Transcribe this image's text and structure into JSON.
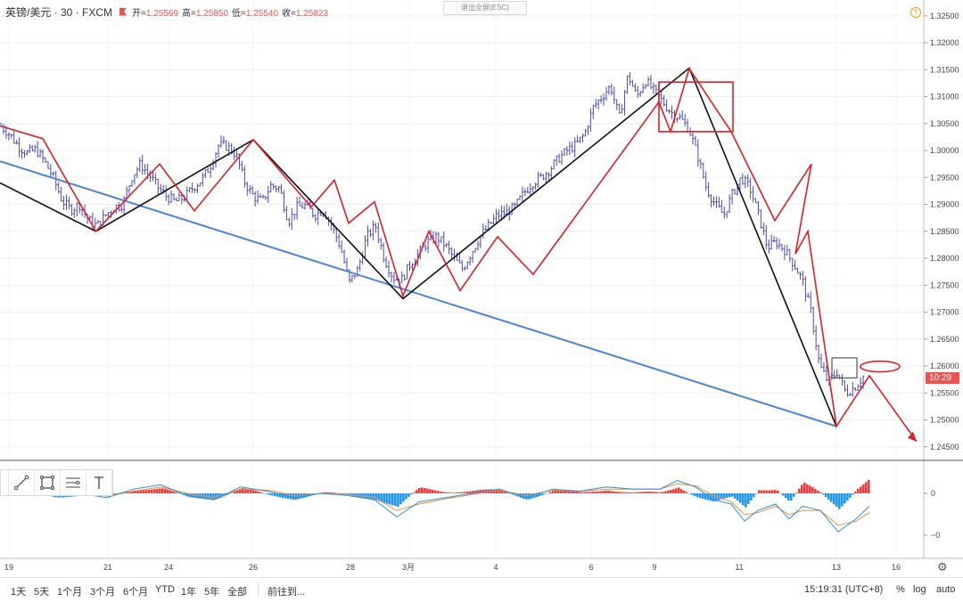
{
  "header": {
    "symbol": "英镑/美元 · 30 · FXCM",
    "open_label": "开",
    "open": "1.25569",
    "high_label": "高",
    "high": "1.25850",
    "low_label": "低",
    "low": "1.25540",
    "close_label": "收",
    "close": "1.25823"
  },
  "exit_fullscreen": "退出全屏(ESC)",
  "warning_icon": "!",
  "price_tag": "10:29",
  "colors": {
    "up": "#26a69a",
    "down": "#ef5350",
    "candle": "#4a4ab8",
    "zigzag_red": "#e01e26",
    "zigzag_black": "#111111",
    "trendline": "#4a86d6",
    "macd_line": "#2f8ee0",
    "signal_line": "#e8923a",
    "hist_pos": "#ef3b3b",
    "hist_neg": "#2196f3"
  },
  "chart_data": [
    {
      "type": "candlestick",
      "axis_position": "right",
      "ylim": [
        1.243,
        1.328
      ],
      "y_ticks": [
        "1.24500",
        "1.25000",
        "1.25500",
        "1.26000",
        "1.26500",
        "1.27000",
        "1.27500",
        "1.28000",
        "1.28500",
        "1.29000",
        "1.29500",
        "1.30000",
        "1.30500",
        "1.31000",
        "1.31500",
        "1.32000",
        "1.32500"
      ],
      "x_ticks": [
        "19",
        "21",
        "24",
        "26",
        "28",
        "3月",
        "4",
        "6",
        "9",
        "11",
        "13",
        "16"
      ],
      "price_path": [
        [
          0,
          1.3045
        ],
        [
          1,
          1.303
        ],
        [
          2,
          1.3008
        ],
        [
          3,
          1.2995
        ],
        [
          4,
          1.3002
        ],
        [
          5,
          1.298
        ],
        [
          6,
          1.295
        ],
        [
          7,
          1.2908
        ],
        [
          8,
          1.289
        ],
        [
          9,
          1.29
        ],
        [
          10,
          1.2872
        ],
        [
          11,
          1.286
        ],
        [
          12,
          1.288
        ],
        [
          13,
          1.2895
        ],
        [
          14,
          1.29
        ],
        [
          15,
          1.295
        ],
        [
          16,
          1.2975
        ],
        [
          17,
          1.2955
        ],
        [
          18,
          1.2932
        ],
        [
          19,
          1.2915
        ],
        [
          20,
          1.2905
        ],
        [
          21,
          1.2912
        ],
        [
          22,
          1.293
        ],
        [
          23,
          1.2945
        ],
        [
          24,
          1.297
        ],
        [
          25,
          1.301
        ],
        [
          26,
          1.3008
        ],
        [
          27,
          1.2992
        ],
        [
          28,
          1.294
        ],
        [
          29,
          1.2915
        ],
        [
          30,
          1.2905
        ],
        [
          31,
          1.2935
        ],
        [
          32,
          1.293
        ],
        [
          33,
          1.2868
        ],
        [
          34,
          1.2895
        ],
        [
          35,
          1.2898
        ],
        [
          36,
          1.288
        ],
        [
          37,
          1.289
        ],
        [
          38,
          1.286
        ],
        [
          39,
          1.282
        ],
        [
          40,
          1.2755
        ],
        [
          41,
          1.278
        ],
        [
          42,
          1.284
        ],
        [
          43,
          1.286
        ],
        [
          44,
          1.28
        ],
        [
          45,
          1.2765
        ],
        [
          46,
          1.276
        ],
        [
          47,
          1.279
        ],
        [
          48,
          1.281
        ],
        [
          49,
          1.283
        ],
        [
          50,
          1.284
        ],
        [
          51,
          1.2825
        ],
        [
          52,
          1.28
        ],
        [
          53,
          1.278
        ],
        [
          54,
          1.281
        ],
        [
          55,
          1.284
        ],
        [
          56,
          1.286
        ],
        [
          57,
          1.288
        ],
        [
          58,
          1.2885
        ],
        [
          59,
          1.2895
        ],
        [
          60,
          1.292
        ],
        [
          61,
          1.294
        ],
        [
          62,
          1.295
        ],
        [
          63,
          1.2965
        ],
        [
          64,
          1.2985
        ],
        [
          65,
          1.3
        ],
        [
          66,
          1.301
        ],
        [
          67,
          1.303
        ],
        [
          68,
          1.308
        ],
        [
          69,
          1.31
        ],
        [
          70,
          1.312
        ],
        [
          71,
          1.306
        ],
        [
          72,
          1.314
        ],
        [
          73,
          1.31
        ],
        [
          74,
          1.313
        ],
        [
          75,
          1.311
        ],
        [
          76,
          1.309
        ],
        [
          77,
          1.307
        ],
        [
          78,
          1.306
        ],
        [
          79,
          1.304
        ],
        [
          80,
          1.299
        ],
        [
          81,
          1.293
        ],
        [
          82,
          1.29
        ],
        [
          83,
          1.288
        ],
        [
          84,
          1.292
        ],
        [
          85,
          1.295
        ],
        [
          86,
          1.293
        ],
        [
          87,
          1.288
        ],
        [
          88,
          1.282
        ],
        [
          89,
          1.283
        ],
        [
          90,
          1.2815
        ],
        [
          91,
          1.279
        ],
        [
          92,
          1.276
        ],
        [
          93,
          1.27
        ],
        [
          94,
          1.26
        ],
        [
          95,
          1.257
        ],
        [
          96,
          1.259
        ],
        [
          97,
          1.255
        ],
        [
          98,
          1.256
        ],
        [
          99,
          1.258
        ]
      ],
      "zigzag_red": [
        [
          1.29,
          1.3045
        ],
        [
          48,
          1.3022
        ],
        [
          107.5,
          1.285
        ],
        [
          179,
          1.2975
        ],
        [
          218,
          1.2888
        ],
        [
          284,
          1.302
        ],
        [
          349,
          1.2895
        ],
        [
          375,
          1.2945
        ],
        [
          391,
          1.2865
        ],
        [
          420,
          1.2905
        ],
        [
          452,
          1.273
        ],
        [
          481,
          1.285
        ],
        [
          516,
          1.274
        ],
        [
          558,
          1.284
        ],
        [
          598,
          1.277
        ],
        [
          739,
          1.309
        ],
        [
          752,
          1.3035
        ],
        [
          773,
          1.3152
        ],
        [
          820,
          1.3035
        ],
        [
          869,
          1.287
        ],
        [
          910,
          1.2975
        ],
        [
          892,
          1.2808
        ],
        [
          906,
          1.285
        ],
        [
          938,
          1.2488
        ],
        [
          975,
          1.2582
        ],
        [
          1028,
          1.246
        ]
      ],
      "zigzag_black": [
        [
          0,
          1.294
        ],
        [
          107.5,
          1.285
        ],
        [
          284,
          1.302
        ],
        [
          452,
          1.2725
        ],
        [
          773,
          1.3153
        ],
        [
          938,
          1.2488
        ]
      ],
      "trendline": [
        [
          0,
          1.298
        ],
        [
          938,
          1.2488
        ]
      ],
      "boxes": [
        {
          "x1": 739,
          "x2": 822,
          "y1": 1.3127,
          "y2": 1.3035,
          "color": "red"
        },
        {
          "x1": 933,
          "x2": 961,
          "y1": 1.2615,
          "y2": 1.2578,
          "color": "black"
        }
      ],
      "ellipse": {
        "cx": 987,
        "cy": 1.2599,
        "rx": 22,
        "ry": 6
      }
    },
    {
      "type": "macd",
      "y_ticks": [
        "0",
        "−0"
      ],
      "macd_line": [
        [
          0,
          0.2
        ],
        [
          30,
          0.3
        ],
        [
          60,
          0.1
        ],
        [
          90,
          0.0
        ],
        [
          120,
          -0.2
        ],
        [
          150,
          0.2
        ],
        [
          180,
          0.4
        ],
        [
          210,
          -0.1
        ],
        [
          240,
          -0.3
        ],
        [
          270,
          0.3
        ],
        [
          300,
          0.1
        ],
        [
          330,
          -0.2
        ],
        [
          360,
          0.0
        ],
        [
          390,
          -0.1
        ],
        [
          420,
          -0.3
        ],
        [
          445,
          -1.1
        ],
        [
          470,
          -0.4
        ],
        [
          500,
          -0.2
        ],
        [
          530,
          0.0
        ],
        [
          560,
          0.2
        ],
        [
          590,
          -0.2
        ],
        [
          620,
          0.2
        ],
        [
          650,
          0.1
        ],
        [
          680,
          0.3
        ],
        [
          710,
          0.2
        ],
        [
          740,
          0.2
        ],
        [
          760,
          0.6
        ],
        [
          780,
          0.3
        ],
        [
          800,
          -0.3
        ],
        [
          820,
          -0.5
        ],
        [
          835,
          -1.3
        ],
        [
          850,
          -0.8
        ],
        [
          870,
          -0.5
        ],
        [
          885,
          -1.2
        ],
        [
          900,
          -0.6
        ],
        [
          920,
          -0.8
        ],
        [
          940,
          -1.8
        ],
        [
          960,
          -1.2
        ],
        [
          975,
          -0.6
        ]
      ],
      "signal_line": [
        [
          0,
          0.1
        ],
        [
          30,
          0.2
        ],
        [
          60,
          0.15
        ],
        [
          90,
          0.05
        ],
        [
          120,
          -0.1
        ],
        [
          150,
          0.1
        ],
        [
          180,
          0.3
        ],
        [
          210,
          0.0
        ],
        [
          240,
          -0.2
        ],
        [
          270,
          0.2
        ],
        [
          300,
          0.15
        ],
        [
          330,
          -0.1
        ],
        [
          360,
          0.0
        ],
        [
          390,
          -0.05
        ],
        [
          420,
          -0.2
        ],
        [
          445,
          -0.8
        ],
        [
          470,
          -0.5
        ],
        [
          500,
          -0.25
        ],
        [
          530,
          -0.05
        ],
        [
          560,
          0.15
        ],
        [
          590,
          -0.1
        ],
        [
          620,
          0.15
        ],
        [
          650,
          0.1
        ],
        [
          680,
          0.2
        ],
        [
          710,
          0.2
        ],
        [
          740,
          0.2
        ],
        [
          760,
          0.45
        ],
        [
          780,
          0.35
        ],
        [
          800,
          -0.1
        ],
        [
          820,
          -0.4
        ],
        [
          835,
          -1.0
        ],
        [
          850,
          -0.9
        ],
        [
          870,
          -0.6
        ],
        [
          885,
          -1.0
        ],
        [
          900,
          -0.8
        ],
        [
          920,
          -0.8
        ],
        [
          940,
          -1.5
        ],
        [
          960,
          -1.3
        ],
        [
          975,
          -0.9
        ]
      ]
    }
  ],
  "toolbox": [
    "line-tool",
    "rect-tool",
    "fib-tool",
    "text-tool"
  ],
  "bottom": {
    "ranges": [
      "1天",
      "5天",
      "1个月",
      "3个月",
      "6个月",
      "YTD",
      "1年",
      "5年",
      "全部"
    ],
    "goto": "前往到...",
    "clock": "15:19:31 (UTC+8)",
    "pct": "%",
    "log": "log",
    "auto": "auto"
  }
}
